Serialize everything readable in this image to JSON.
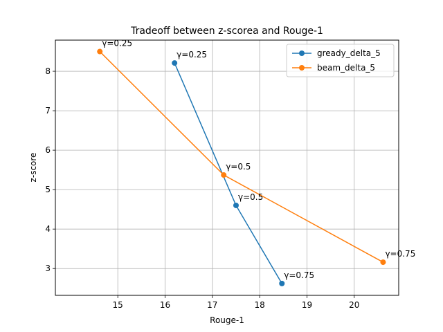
{
  "chart_data": {
    "type": "line",
    "title": "Tradeoff between z-scorea and Rouge-1",
    "xlabel": "Rouge-1",
    "ylabel": "z-score",
    "xlim": [
      13.68,
      20.94
    ],
    "ylim": [
      2.32,
      8.79
    ],
    "xticks": [
      15,
      16,
      17,
      18,
      19,
      20
    ],
    "yticks": [
      3,
      4,
      5,
      6,
      7,
      8
    ],
    "grid": true,
    "legend_position": "top-right",
    "series": [
      {
        "name": "gready_delta_5",
        "color": "#1f77b4",
        "x": [
          16.2,
          17.5,
          18.47
        ],
        "y": [
          8.21,
          4.6,
          2.62
        ],
        "labels": [
          "γ=0.25",
          "γ=0.5",
          "γ=0.75"
        ]
      },
      {
        "name": "beam_delta_5",
        "color": "#ff7f0e",
        "x": [
          14.62,
          17.24,
          20.61
        ],
        "y": [
          8.5,
          5.37,
          3.16
        ],
        "labels": [
          "γ=0.25",
          "γ=0.5",
          "γ=0.75"
        ]
      }
    ]
  }
}
